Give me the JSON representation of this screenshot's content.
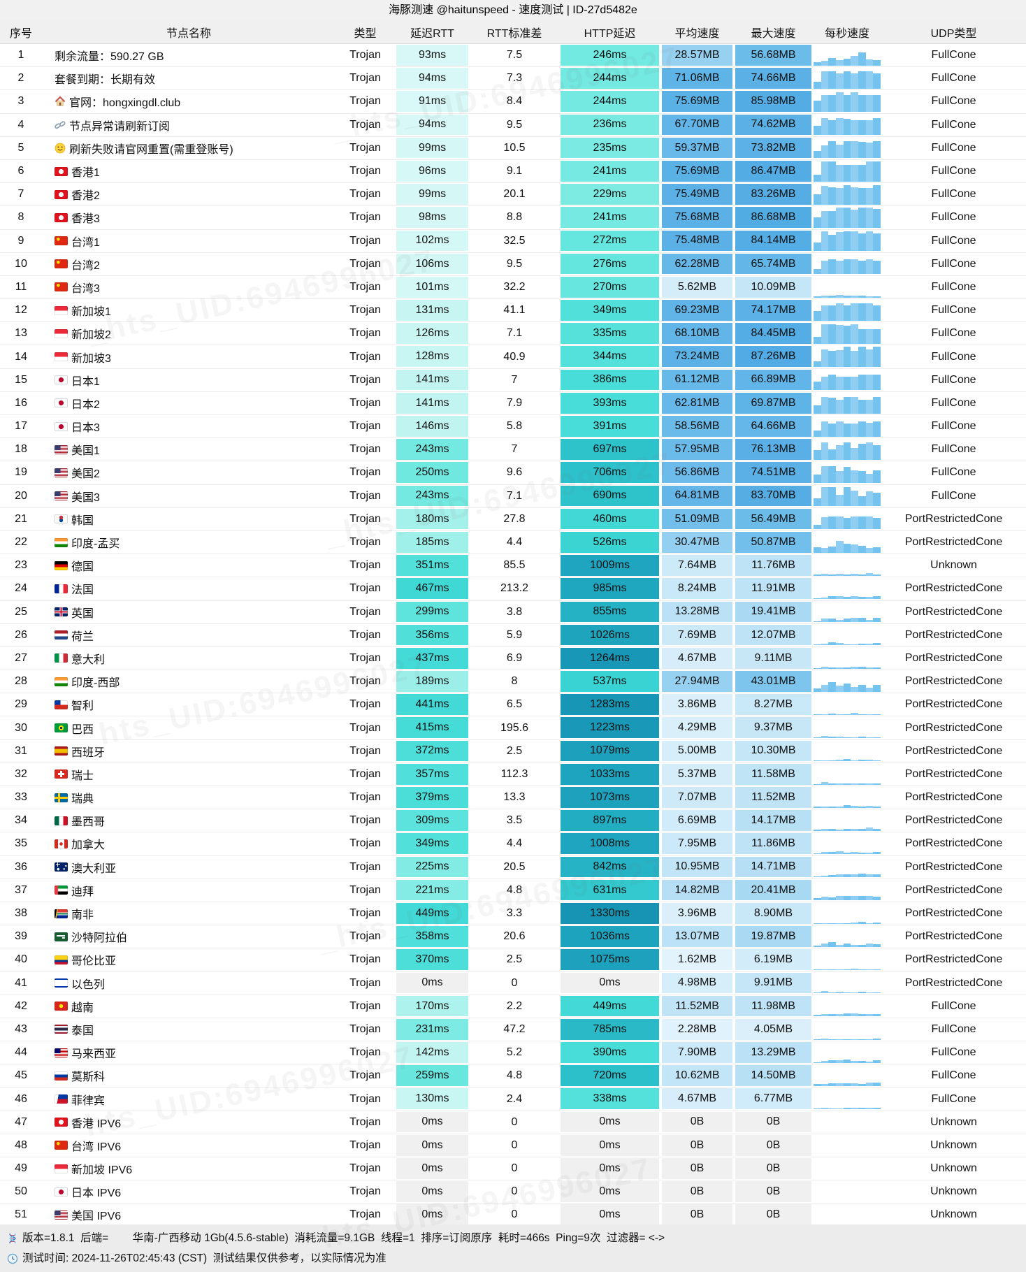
{
  "title": "海豚测速 @haitunspeed - 速度测试 | ID-27d5482e",
  "watermark": "_hts_UID:6946996027",
  "columns": [
    "序号",
    "节点名称",
    "类型",
    "延迟RTT",
    "RTT标准差",
    "HTTP延迟",
    "平均速度",
    "最大速度",
    "每秒速度",
    "UDP类型"
  ],
  "footer": {
    "line1": "版本=1.8.1  后端=        华南-广西移动 1Gb(4.5.6-stable)  消耗流量=9.1GB  线程=1  排序=订阅原序  耗时=466s  Ping=9次  过滤器= <->",
    "line2": "测试时间: 2024-11-26T02:45:43 (CST)  测试结果仅供参考，以实际情况为准"
  },
  "colors": {
    "zero_cell": "#f0f0f0",
    "latency_scale": [
      [
        85,
        "#dbf9f7"
      ],
      [
        110,
        "#d0f7f5"
      ],
      [
        150,
        "#bef4f0"
      ],
      [
        200,
        "#93eee7"
      ],
      [
        260,
        "#68e7df"
      ],
      [
        400,
        "#46dcd8"
      ],
      [
        550,
        "#39d2d2"
      ],
      [
        720,
        "#2cc0ca"
      ],
      [
        900,
        "#23adc3"
      ],
      [
        1100,
        "#1c9fbb"
      ],
      [
        1400,
        "#1590b1"
      ]
    ],
    "speed_scale": [
      [
        1,
        "#e4f4fc"
      ],
      [
        4,
        "#daeffa"
      ],
      [
        8,
        "#cbe9f8"
      ],
      [
        12,
        "#bee3f6"
      ],
      [
        17,
        "#b0dcf4"
      ],
      [
        25,
        "#9dd4f2"
      ],
      [
        35,
        "#8acbef"
      ],
      [
        50,
        "#74c0ec"
      ],
      [
        62,
        "#66b8e9"
      ],
      [
        75,
        "#5bb1e6"
      ],
      [
        90,
        "#50aae3"
      ]
    ],
    "spark_bar": "#74c2ee",
    "spark_bar_alt": "#8fcef2"
  },
  "rows": [
    {
      "num": 1,
      "name": "剩余流量：590.27 GB",
      "flag": "",
      "icon": "",
      "type": "Trojan",
      "rtt": "93ms",
      "std": "7.5",
      "http": "246ms",
      "avg": "28.57MB",
      "max": "56.68MB",
      "udp": "FullCone"
    },
    {
      "num": 2,
      "name": "套餐到期：长期有效",
      "flag": "",
      "icon": "",
      "type": "Trojan",
      "rtt": "94ms",
      "std": "7.3",
      "http": "244ms",
      "avg": "71.06MB",
      "max": "74.66MB",
      "udp": "FullCone"
    },
    {
      "num": 3,
      "name": "官网：hongxingdl.club",
      "flag": "",
      "icon": "house",
      "type": "Trojan",
      "rtt": "91ms",
      "std": "8.4",
      "http": "244ms",
      "avg": "75.69MB",
      "max": "85.98MB",
      "udp": "FullCone"
    },
    {
      "num": 4,
      "name": "节点异常请刷新订阅",
      "flag": "",
      "icon": "link",
      "type": "Trojan",
      "rtt": "94ms",
      "std": "9.5",
      "http": "236ms",
      "avg": "67.70MB",
      "max": "74.62MB",
      "udp": "FullCone"
    },
    {
      "num": 5,
      "name": "刷新失败请官网重置(需重登账号)",
      "flag": "",
      "icon": "smiley",
      "type": "Trojan",
      "rtt": "99ms",
      "std": "10.5",
      "http": "235ms",
      "avg": "59.37MB",
      "max": "73.82MB",
      "udp": "FullCone"
    },
    {
      "num": 6,
      "name": "香港1",
      "flag": "hk",
      "icon": "",
      "type": "Trojan",
      "rtt": "96ms",
      "std": "9.1",
      "http": "241ms",
      "avg": "75.69MB",
      "max": "86.47MB",
      "udp": "FullCone"
    },
    {
      "num": 7,
      "name": "香港2",
      "flag": "hk",
      "icon": "",
      "type": "Trojan",
      "rtt": "99ms",
      "std": "20.1",
      "http": "229ms",
      "avg": "75.49MB",
      "max": "83.26MB",
      "udp": "FullCone"
    },
    {
      "num": 8,
      "name": "香港3",
      "flag": "hk",
      "icon": "",
      "type": "Trojan",
      "rtt": "98ms",
      "std": "8.8",
      "http": "241ms",
      "avg": "75.68MB",
      "max": "86.68MB",
      "udp": "FullCone"
    },
    {
      "num": 9,
      "name": "台湾1",
      "flag": "tw",
      "icon": "",
      "type": "Trojan",
      "rtt": "102ms",
      "std": "32.5",
      "http": "272ms",
      "avg": "75.48MB",
      "max": "84.14MB",
      "udp": "FullCone"
    },
    {
      "num": 10,
      "name": "台湾2",
      "flag": "tw",
      "icon": "",
      "type": "Trojan",
      "rtt": "106ms",
      "std": "9.5",
      "http": "276ms",
      "avg": "62.28MB",
      "max": "65.74MB",
      "udp": "FullCone"
    },
    {
      "num": 11,
      "name": "台湾3",
      "flag": "tw",
      "icon": "",
      "type": "Trojan",
      "rtt": "101ms",
      "std": "32.2",
      "http": "270ms",
      "avg": "5.62MB",
      "max": "10.09MB",
      "udp": "FullCone"
    },
    {
      "num": 12,
      "name": "新加坡1",
      "flag": "sg",
      "icon": "",
      "type": "Trojan",
      "rtt": "131ms",
      "std": "41.1",
      "http": "349ms",
      "avg": "69.23MB",
      "max": "74.17MB",
      "udp": "FullCone"
    },
    {
      "num": 13,
      "name": "新加坡2",
      "flag": "sg",
      "icon": "",
      "type": "Trojan",
      "rtt": "126ms",
      "std": "7.1",
      "http": "335ms",
      "avg": "68.10MB",
      "max": "84.45MB",
      "udp": "FullCone"
    },
    {
      "num": 14,
      "name": "新加坡3",
      "flag": "sg",
      "icon": "",
      "type": "Trojan",
      "rtt": "128ms",
      "std": "40.9",
      "http": "344ms",
      "avg": "73.24MB",
      "max": "87.26MB",
      "udp": "FullCone"
    },
    {
      "num": 15,
      "name": "日本1",
      "flag": "jp",
      "icon": "",
      "type": "Trojan",
      "rtt": "141ms",
      "std": "7",
      "http": "386ms",
      "avg": "61.12MB",
      "max": "66.89MB",
      "udp": "FullCone"
    },
    {
      "num": 16,
      "name": "日本2",
      "flag": "jp",
      "icon": "",
      "type": "Trojan",
      "rtt": "141ms",
      "std": "7.9",
      "http": "393ms",
      "avg": "62.81MB",
      "max": "69.87MB",
      "udp": "FullCone"
    },
    {
      "num": 17,
      "name": "日本3",
      "flag": "jp",
      "icon": "",
      "type": "Trojan",
      "rtt": "146ms",
      "std": "5.8",
      "http": "391ms",
      "avg": "58.56MB",
      "max": "64.66MB",
      "udp": "FullCone"
    },
    {
      "num": 18,
      "name": "美国1",
      "flag": "us",
      "icon": "",
      "type": "Trojan",
      "rtt": "243ms",
      "std": "7",
      "http": "697ms",
      "avg": "57.95MB",
      "max": "76.13MB",
      "udp": "FullCone"
    },
    {
      "num": 19,
      "name": "美国2",
      "flag": "us",
      "icon": "",
      "type": "Trojan",
      "rtt": "250ms",
      "std": "9.6",
      "http": "706ms",
      "avg": "56.86MB",
      "max": "74.51MB",
      "udp": "FullCone"
    },
    {
      "num": 20,
      "name": "美国3",
      "flag": "us",
      "icon": "",
      "type": "Trojan",
      "rtt": "243ms",
      "std": "7.1",
      "http": "690ms",
      "avg": "64.81MB",
      "max": "83.70MB",
      "udp": "FullCone"
    },
    {
      "num": 21,
      "name": "韩国",
      "flag": "kr",
      "icon": "",
      "type": "Trojan",
      "rtt": "180ms",
      "std": "27.8",
      "http": "460ms",
      "avg": "51.09MB",
      "max": "56.49MB",
      "udp": "PortRestrictedCone"
    },
    {
      "num": 22,
      "name": "印度-孟买",
      "flag": "in",
      "icon": "",
      "type": "Trojan",
      "rtt": "185ms",
      "std": "4.4",
      "http": "526ms",
      "avg": "30.47MB",
      "max": "50.87MB",
      "udp": "PortRestrictedCone"
    },
    {
      "num": 23,
      "name": "德国",
      "flag": "de",
      "icon": "",
      "type": "Trojan",
      "rtt": "351ms",
      "std": "85.5",
      "http": "1009ms",
      "avg": "7.64MB",
      "max": "11.76MB",
      "udp": "Unknown"
    },
    {
      "num": 24,
      "name": "法国",
      "flag": "fr",
      "icon": "",
      "type": "Trojan",
      "rtt": "467ms",
      "std": "213.2",
      "http": "985ms",
      "avg": "8.24MB",
      "max": "11.91MB",
      "udp": "PortRestrictedCone"
    },
    {
      "num": 25,
      "name": "英国",
      "flag": "gb",
      "icon": "",
      "type": "Trojan",
      "rtt": "299ms",
      "std": "3.8",
      "http": "855ms",
      "avg": "13.28MB",
      "max": "19.41MB",
      "udp": "PortRestrictedCone"
    },
    {
      "num": 26,
      "name": "荷兰",
      "flag": "nl",
      "icon": "",
      "type": "Trojan",
      "rtt": "356ms",
      "std": "5.9",
      "http": "1026ms",
      "avg": "7.69MB",
      "max": "12.07MB",
      "udp": "PortRestrictedCone"
    },
    {
      "num": 27,
      "name": "意大利",
      "flag": "it",
      "icon": "",
      "type": "Trojan",
      "rtt": "437ms",
      "std": "6.9",
      "http": "1264ms",
      "avg": "4.67MB",
      "max": "9.11MB",
      "udp": "PortRestrictedCone"
    },
    {
      "num": 28,
      "name": "印度-西部",
      "flag": "in",
      "icon": "",
      "type": "Trojan",
      "rtt": "189ms",
      "std": "8",
      "http": "537ms",
      "avg": "27.94MB",
      "max": "43.01MB",
      "udp": "PortRestrictedCone"
    },
    {
      "num": 29,
      "name": "智利",
      "flag": "cl",
      "icon": "",
      "type": "Trojan",
      "rtt": "441ms",
      "std": "6.5",
      "http": "1283ms",
      "avg": "3.86MB",
      "max": "8.27MB",
      "udp": "PortRestrictedCone"
    },
    {
      "num": 30,
      "name": "巴西",
      "flag": "br",
      "icon": "",
      "type": "Trojan",
      "rtt": "415ms",
      "std": "195.6",
      "http": "1223ms",
      "avg": "4.29MB",
      "max": "9.37MB",
      "udp": "PortRestrictedCone"
    },
    {
      "num": 31,
      "name": "西班牙",
      "flag": "es",
      "icon": "",
      "type": "Trojan",
      "rtt": "372ms",
      "std": "2.5",
      "http": "1079ms",
      "avg": "5.00MB",
      "max": "10.30MB",
      "udp": "PortRestrictedCone"
    },
    {
      "num": 32,
      "name": "瑞士",
      "flag": "ch",
      "icon": "",
      "type": "Trojan",
      "rtt": "357ms",
      "std": "112.3",
      "http": "1033ms",
      "avg": "5.37MB",
      "max": "11.58MB",
      "udp": "PortRestrictedCone"
    },
    {
      "num": 33,
      "name": "瑞典",
      "flag": "se",
      "icon": "",
      "type": "Trojan",
      "rtt": "379ms",
      "std": "13.3",
      "http": "1073ms",
      "avg": "7.07MB",
      "max": "11.52MB",
      "udp": "PortRestrictedCone"
    },
    {
      "num": 34,
      "name": "墨西哥",
      "flag": "mx",
      "icon": "",
      "type": "Trojan",
      "rtt": "309ms",
      "std": "3.5",
      "http": "897ms",
      "avg": "6.69MB",
      "max": "14.17MB",
      "udp": "PortRestrictedCone"
    },
    {
      "num": 35,
      "name": "加拿大",
      "flag": "ca",
      "icon": "",
      "type": "Trojan",
      "rtt": "349ms",
      "std": "4.4",
      "http": "1008ms",
      "avg": "7.95MB",
      "max": "11.86MB",
      "udp": "PortRestrictedCone"
    },
    {
      "num": 36,
      "name": "澳大利亚",
      "flag": "au",
      "icon": "",
      "type": "Trojan",
      "rtt": "225ms",
      "std": "20.5",
      "http": "842ms",
      "avg": "10.95MB",
      "max": "14.71MB",
      "udp": "PortRestrictedCone"
    },
    {
      "num": 37,
      "name": "迪拜",
      "flag": "ae",
      "icon": "",
      "type": "Trojan",
      "rtt": "221ms",
      "std": "4.8",
      "http": "631ms",
      "avg": "14.82MB",
      "max": "20.41MB",
      "udp": "PortRestrictedCone"
    },
    {
      "num": 38,
      "name": "南非",
      "flag": "za",
      "icon": "",
      "type": "Trojan",
      "rtt": "449ms",
      "std": "3.3",
      "http": "1330ms",
      "avg": "3.96MB",
      "max": "8.90MB",
      "udp": "PortRestrictedCone"
    },
    {
      "num": 39,
      "name": "沙特阿拉伯",
      "flag": "sa",
      "icon": "",
      "type": "Trojan",
      "rtt": "358ms",
      "std": "20.6",
      "http": "1036ms",
      "avg": "13.07MB",
      "max": "19.87MB",
      "udp": "PortRestrictedCone"
    },
    {
      "num": 40,
      "name": "哥伦比亚",
      "flag": "co",
      "icon": "",
      "type": "Trojan",
      "rtt": "370ms",
      "std": "2.5",
      "http": "1075ms",
      "avg": "1.62MB",
      "max": "6.19MB",
      "udp": "PortRestrictedCone"
    },
    {
      "num": 41,
      "name": "以色列",
      "flag": "il",
      "icon": "",
      "type": "Trojan",
      "rtt": "0ms",
      "std": "0",
      "http": "0ms",
      "avg": "4.98MB",
      "max": "9.91MB",
      "udp": "PortRestrictedCone"
    },
    {
      "num": 42,
      "name": "越南",
      "flag": "vn",
      "icon": "",
      "type": "Trojan",
      "rtt": "170ms",
      "std": "2.2",
      "http": "449ms",
      "avg": "11.52MB",
      "max": "11.98MB",
      "udp": "FullCone"
    },
    {
      "num": 43,
      "name": "泰国",
      "flag": "th",
      "icon": "",
      "type": "Trojan",
      "rtt": "231ms",
      "std": "47.2",
      "http": "785ms",
      "avg": "2.28MB",
      "max": "4.05MB",
      "udp": "FullCone"
    },
    {
      "num": 44,
      "name": "马来西亚",
      "flag": "my",
      "icon": "",
      "type": "Trojan",
      "rtt": "142ms",
      "std": "5.2",
      "http": "390ms",
      "avg": "7.90MB",
      "max": "13.29MB",
      "udp": "FullCone"
    },
    {
      "num": 45,
      "name": "莫斯科",
      "flag": "ru",
      "icon": "",
      "type": "Trojan",
      "rtt": "259ms",
      "std": "4.8",
      "http": "720ms",
      "avg": "10.62MB",
      "max": "14.50MB",
      "udp": "FullCone"
    },
    {
      "num": 46,
      "name": "菲律宾",
      "flag": "ph",
      "icon": "",
      "type": "Trojan",
      "rtt": "130ms",
      "std": "2.4",
      "http": "338ms",
      "avg": "4.67MB",
      "max": "6.77MB",
      "udp": "FullCone"
    },
    {
      "num": 47,
      "name": "香港 IPV6",
      "flag": "hk",
      "icon": "",
      "type": "Trojan",
      "rtt": "0ms",
      "std": "0",
      "http": "0ms",
      "avg": "0B",
      "max": "0B",
      "udp": "Unknown"
    },
    {
      "num": 48,
      "name": "台湾 IPV6",
      "flag": "tw",
      "icon": "",
      "type": "Trojan",
      "rtt": "0ms",
      "std": "0",
      "http": "0ms",
      "avg": "0B",
      "max": "0B",
      "udp": "Unknown"
    },
    {
      "num": 49,
      "name": "新加坡 IPV6",
      "flag": "sg",
      "icon": "",
      "type": "Trojan",
      "rtt": "0ms",
      "std": "0",
      "http": "0ms",
      "avg": "0B",
      "max": "0B",
      "udp": "Unknown"
    },
    {
      "num": 50,
      "name": "日本 IPV6",
      "flag": "jp",
      "icon": "",
      "type": "Trojan",
      "rtt": "0ms",
      "std": "0",
      "http": "0ms",
      "avg": "0B",
      "max": "0B",
      "udp": "Unknown"
    },
    {
      "num": 51,
      "name": "美国 IPV6",
      "flag": "us",
      "icon": "",
      "type": "Trojan",
      "rtt": "0ms",
      "std": "0",
      "http": "0ms",
      "avg": "0B",
      "max": "0B",
      "udp": "Unknown"
    }
  ]
}
